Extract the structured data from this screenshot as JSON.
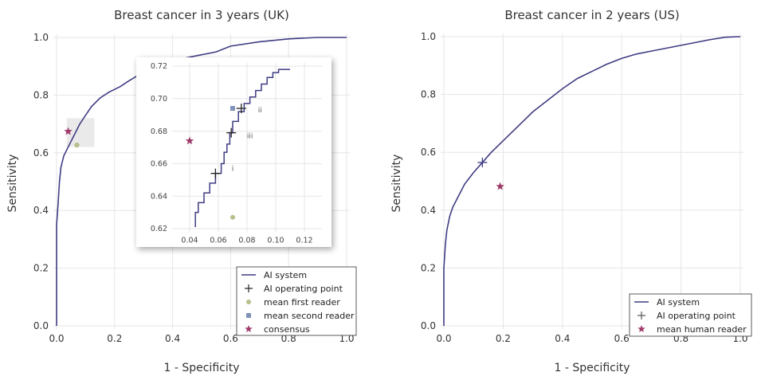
{
  "chart_data": [
    {
      "type": "line",
      "title": "Breast cancer in 3 years (UK)",
      "xlabel": "1 - Specificity",
      "ylabel": "Sensitivity",
      "xlim": [
        0,
        1
      ],
      "ylim": [
        0,
        1
      ],
      "xticks": [
        "0.0",
        "0.2",
        "0.4",
        "0.6",
        "0.8",
        "1.0"
      ],
      "yticks": [
        "0.0",
        "0.2",
        "0.4",
        "0.6",
        "0.8",
        "1.0"
      ],
      "grid": true,
      "legend_position": "bottom-right",
      "legend": [
        "AI system",
        "AI operating point",
        "mean first reader",
        "mean second reader",
        "consensus"
      ],
      "series": [
        {
          "name": "AI system",
          "color": "#3f3c82",
          "x": [
            0.0,
            0.0,
            0.005,
            0.01,
            0.015,
            0.02,
            0.025,
            0.03,
            0.04,
            0.05,
            0.06,
            0.07,
            0.08,
            0.1,
            0.12,
            0.15,
            0.18,
            0.22,
            0.25,
            0.3,
            0.35,
            0.4,
            0.5,
            0.55,
            0.6,
            0.7,
            0.8,
            0.9,
            1.0
          ],
          "y": [
            0.0,
            0.35,
            0.42,
            0.5,
            0.55,
            0.57,
            0.59,
            0.6,
            0.62,
            0.64,
            0.66,
            0.68,
            0.7,
            0.73,
            0.76,
            0.79,
            0.81,
            0.83,
            0.85,
            0.88,
            0.9,
            0.92,
            0.94,
            0.95,
            0.97,
            0.985,
            0.995,
            1.0,
            1.0
          ]
        }
      ],
      "points": [
        {
          "name": "consensus",
          "x": 0.04,
          "y": 0.674,
          "color": "#9e3a6a",
          "marker": "star"
        },
        {
          "name": "mean first reader",
          "x": 0.07,
          "y": 0.627,
          "color": "#b6c08a",
          "marker": "circle"
        }
      ],
      "zoom_region": {
        "x": [
          0.035,
          0.13
        ],
        "y": [
          0.62,
          0.72
        ]
      },
      "inset": {
        "xlim": [
          0.03,
          0.13
        ],
        "ylim": [
          0.62,
          0.72
        ],
        "xticks": [
          "0.04",
          "0.06",
          "0.08",
          "0.10",
          "0.12"
        ],
        "yticks": [
          "0.62",
          "0.64",
          "0.66",
          "0.68",
          "0.70",
          "0.72"
        ],
        "roc": {
          "x": [
            0.044,
            0.044,
            0.046,
            0.046,
            0.05,
            0.05,
            0.054,
            0.054,
            0.058,
            0.058,
            0.062,
            0.062,
            0.064,
            0.064,
            0.066,
            0.066,
            0.068,
            0.068,
            0.07,
            0.07,
            0.074,
            0.074,
            0.078,
            0.078,
            0.082,
            0.082,
            0.086,
            0.086,
            0.09,
            0.09,
            0.094,
            0.094,
            0.098,
            0.098,
            0.102,
            0.102,
            0.11
          ],
          "y": [
            0.621,
            0.63,
            0.63,
            0.636,
            0.636,
            0.642,
            0.642,
            0.648,
            0.648,
            0.654,
            0.654,
            0.66,
            0.66,
            0.667,
            0.667,
            0.672,
            0.672,
            0.679,
            0.679,
            0.686,
            0.686,
            0.692,
            0.692,
            0.697,
            0.697,
            0.701,
            0.701,
            0.705,
            0.705,
            0.709,
            0.709,
            0.713,
            0.713,
            0.716,
            0.716,
            0.718,
            0.718
          ]
        },
        "ai_operating_points": [
          {
            "x": 0.058,
            "y": 0.654
          },
          {
            "x": 0.069,
            "y": 0.679
          },
          {
            "x": 0.076,
            "y": 0.694
          }
        ],
        "consensus": {
          "x": 0.04,
          "y": 0.674
        },
        "mean_first_reader": {
          "x": 0.07,
          "y": 0.627
        },
        "mean_second_reader": {
          "x": 0.07,
          "y": 0.694
        },
        "annotations": [
          {
            "text": "i",
            "x": 0.07,
            "y": 0.657
          },
          {
            "text": "ii",
            "x": 0.089,
            "y": 0.693
          },
          {
            "text": "iii",
            "x": 0.082,
            "y": 0.677
          }
        ]
      }
    },
    {
      "type": "line",
      "title": "Breast cancer in 2 years (US)",
      "xlabel": "1 - Specificity",
      "ylabel": "Sensitivity",
      "xlim": [
        0,
        1
      ],
      "ylim": [
        0,
        1
      ],
      "xticks": [
        "0.0",
        "0.2",
        "0.4",
        "0.6",
        "0.8",
        "1.0"
      ],
      "yticks": [
        "0.0",
        "0.2",
        "0.4",
        "0.6",
        "0.8",
        "1.0"
      ],
      "grid": true,
      "legend_position": "bottom-right",
      "legend": [
        "AI system",
        "AI operating point",
        "mean human reader"
      ],
      "series": [
        {
          "name": "AI system",
          "color": "#3f3c82",
          "x": [
            0.0,
            0.0,
            0.005,
            0.01,
            0.02,
            0.03,
            0.05,
            0.07,
            0.1,
            0.13,
            0.16,
            0.19,
            0.22,
            0.26,
            0.3,
            0.35,
            0.4,
            0.45,
            0.5,
            0.55,
            0.6,
            0.65,
            0.7,
            0.75,
            0.8,
            0.85,
            0.9,
            0.95,
            1.0
          ],
          "y": [
            0.0,
            0.2,
            0.28,
            0.33,
            0.38,
            0.41,
            0.45,
            0.49,
            0.53,
            0.565,
            0.6,
            0.63,
            0.66,
            0.7,
            0.74,
            0.78,
            0.82,
            0.855,
            0.88,
            0.905,
            0.925,
            0.94,
            0.95,
            0.96,
            0.97,
            0.98,
            0.99,
            0.998,
            1.0
          ]
        }
      ],
      "points": [
        {
          "name": "AI operating point",
          "x": 0.13,
          "y": 0.565,
          "color": "#3f3c82",
          "marker": "plus"
        },
        {
          "name": "mean human reader",
          "x": 0.19,
          "y": 0.482,
          "color": "#9e3a6a",
          "marker": "star"
        }
      ]
    }
  ],
  "colors": {
    "roc": "#3f3c82",
    "consensus": "#9e3a6a",
    "first_reader": "#b6c08a",
    "second_reader": "#7f92b8",
    "grid": "#e6e6e6"
  }
}
